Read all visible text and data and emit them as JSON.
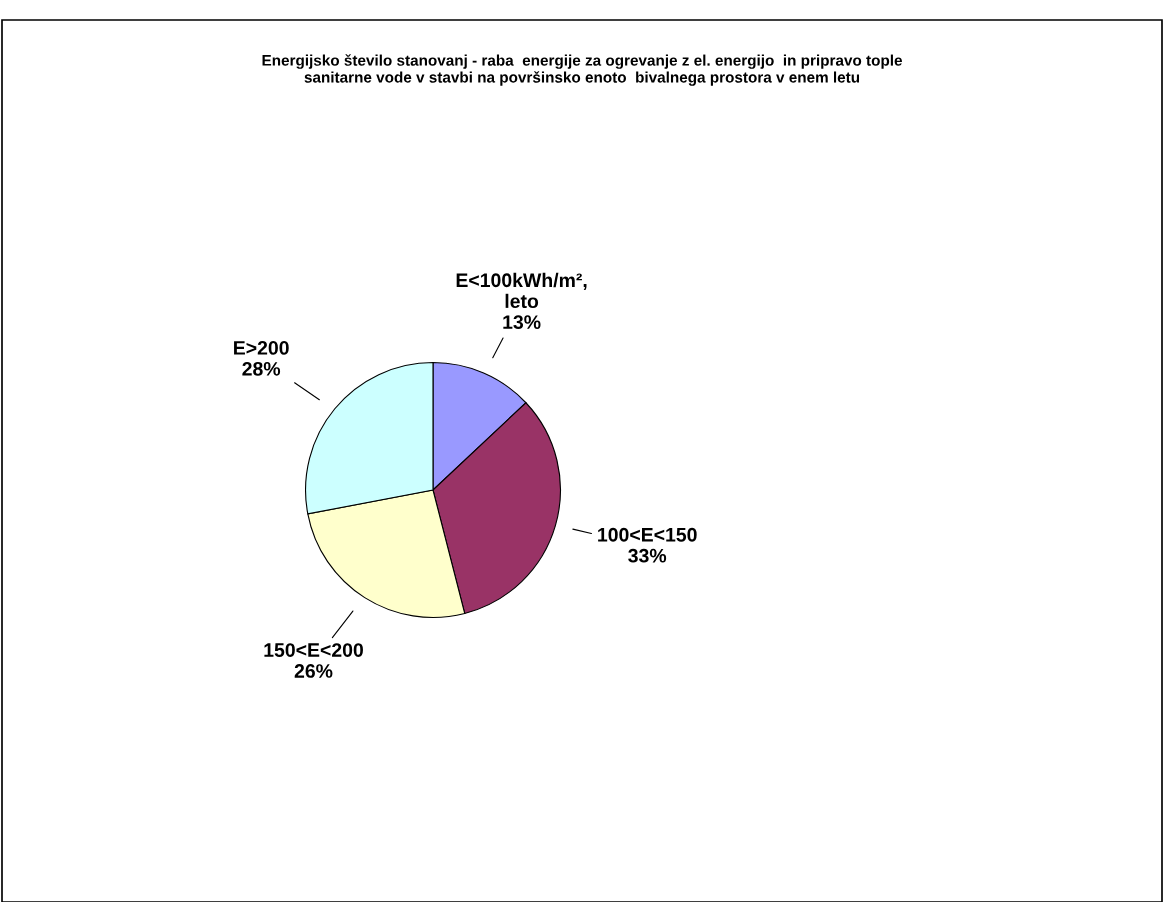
{
  "chart_data": {
    "type": "pie",
    "title": "Energijsko število stanovanj - raba  energije za ogrevanje z el. energijo  in pripravo tople\nsanitarne vode v stavbi na površinsko enoto  bivalnega prostora v enem letu",
    "categories": [
      "E<100kWh/m²,\nleto",
      "100<E<150",
      "150<E<200",
      "E>200"
    ],
    "values": [
      13,
      33,
      26,
      28
    ],
    "value_labels": [
      "13%",
      "33%",
      "26%",
      "28%"
    ],
    "colors": [
      "#9999ff",
      "#993366",
      "#ffffcc",
      "#ccffff"
    ],
    "legend": false
  }
}
